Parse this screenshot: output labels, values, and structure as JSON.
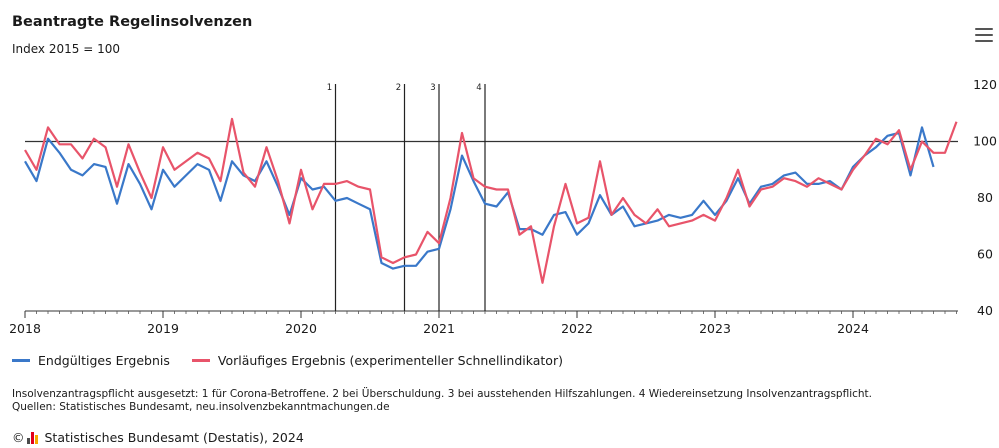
{
  "header": {
    "title": "Beantragte Regelinsolvenzen",
    "subtitle": "Index 2015 = 100"
  },
  "menu": {
    "icon": "hamburger-menu-icon"
  },
  "legend": {
    "items": [
      {
        "label": "Endgültiges Ergebnis",
        "color": "#3a78c9"
      },
      {
        "label": "Vorläufiges Ergebnis (experimenteller Schnellindikator)",
        "color": "#e8546a"
      }
    ]
  },
  "footnotes": {
    "line1": "Insolvenzantragspflicht ausgesetzt: 1 für Corona-Betroffene. 2 bei Überschuldung. 3 bei ausstehenden Hilfszahlungen. 4 Wiedereinsetzung Insolvenzantragspflicht.",
    "line2": "Quellen: Statistisches Bundesamt, neu.insolvenzbekanntmachungen.de"
  },
  "credit": {
    "copyright_symbol": "©",
    "text": "Statistisches Bundesamt (Destatis), 2024",
    "logo_colors": [
      "#4b4b4b",
      "#e2001a",
      "#f5a800"
    ]
  },
  "chart_data": {
    "type": "line",
    "title": "Beantragte Regelinsolvenzen",
    "subtitle": "Index 2015 = 100",
    "xlabel": "",
    "ylabel": "",
    "x_ticks": [
      "2018",
      "2019",
      "2020",
      "2021",
      "2022",
      "2023",
      "2024"
    ],
    "y_ticks": [
      40,
      60,
      80,
      100,
      120
    ],
    "ylim": [
      40,
      120
    ],
    "x_start": "2018-01",
    "reference_line": 100,
    "grid": false,
    "legend_position": "bottom-left",
    "annotations": [
      {
        "label": "1",
        "month": "2020-04"
      },
      {
        "label": "2",
        "month": "2020-10"
      },
      {
        "label": "3",
        "month": "2021-01"
      },
      {
        "label": "4",
        "month": "2021-05"
      }
    ],
    "series": [
      {
        "name": "Endgültiges Ergebnis",
        "color": "#3a78c9",
        "values": [
          93,
          86,
          101,
          96,
          90,
          88,
          92,
          91,
          78,
          92,
          85,
          76,
          90,
          84,
          88,
          92,
          90,
          79,
          93,
          88,
          86,
          93,
          84,
          74,
          87,
          83,
          84,
          79,
          80,
          78,
          76,
          57,
          55,
          56,
          56,
          61,
          62,
          76,
          95,
          86,
          78,
          77,
          82,
          69,
          69,
          67,
          74,
          75,
          67,
          71,
          81,
          74,
          77,
          70,
          71,
          72,
          74,
          73,
          74,
          79,
          74,
          79,
          87,
          78,
          84,
          85,
          88,
          89,
          85,
          85,
          86,
          83,
          91,
          95,
          98,
          102,
          103,
          88,
          105,
          91
        ]
      },
      {
        "name": "Vorläufiges Ergebnis (experimenteller Schnellindikator)",
        "color": "#e8546a",
        "values": [
          97,
          90,
          105,
          99,
          99,
          94,
          101,
          98,
          84,
          99,
          89,
          80,
          98,
          90,
          93,
          96,
          94,
          86,
          108,
          89,
          84,
          98,
          86,
          71,
          90,
          76,
          85,
          85,
          86,
          84,
          83,
          59,
          57,
          59,
          60,
          68,
          64,
          80,
          103,
          87,
          84,
          83,
          83,
          67,
          70,
          50,
          70,
          85,
          71,
          73,
          93,
          74,
          80,
          74,
          71,
          76,
          70,
          71,
          72,
          74,
          72,
          80,
          90,
          77,
          83,
          84,
          87,
          86,
          84,
          87,
          85,
          83,
          90,
          95,
          101,
          99,
          104,
          90,
          100,
          96,
          96,
          107
        ]
      }
    ]
  }
}
